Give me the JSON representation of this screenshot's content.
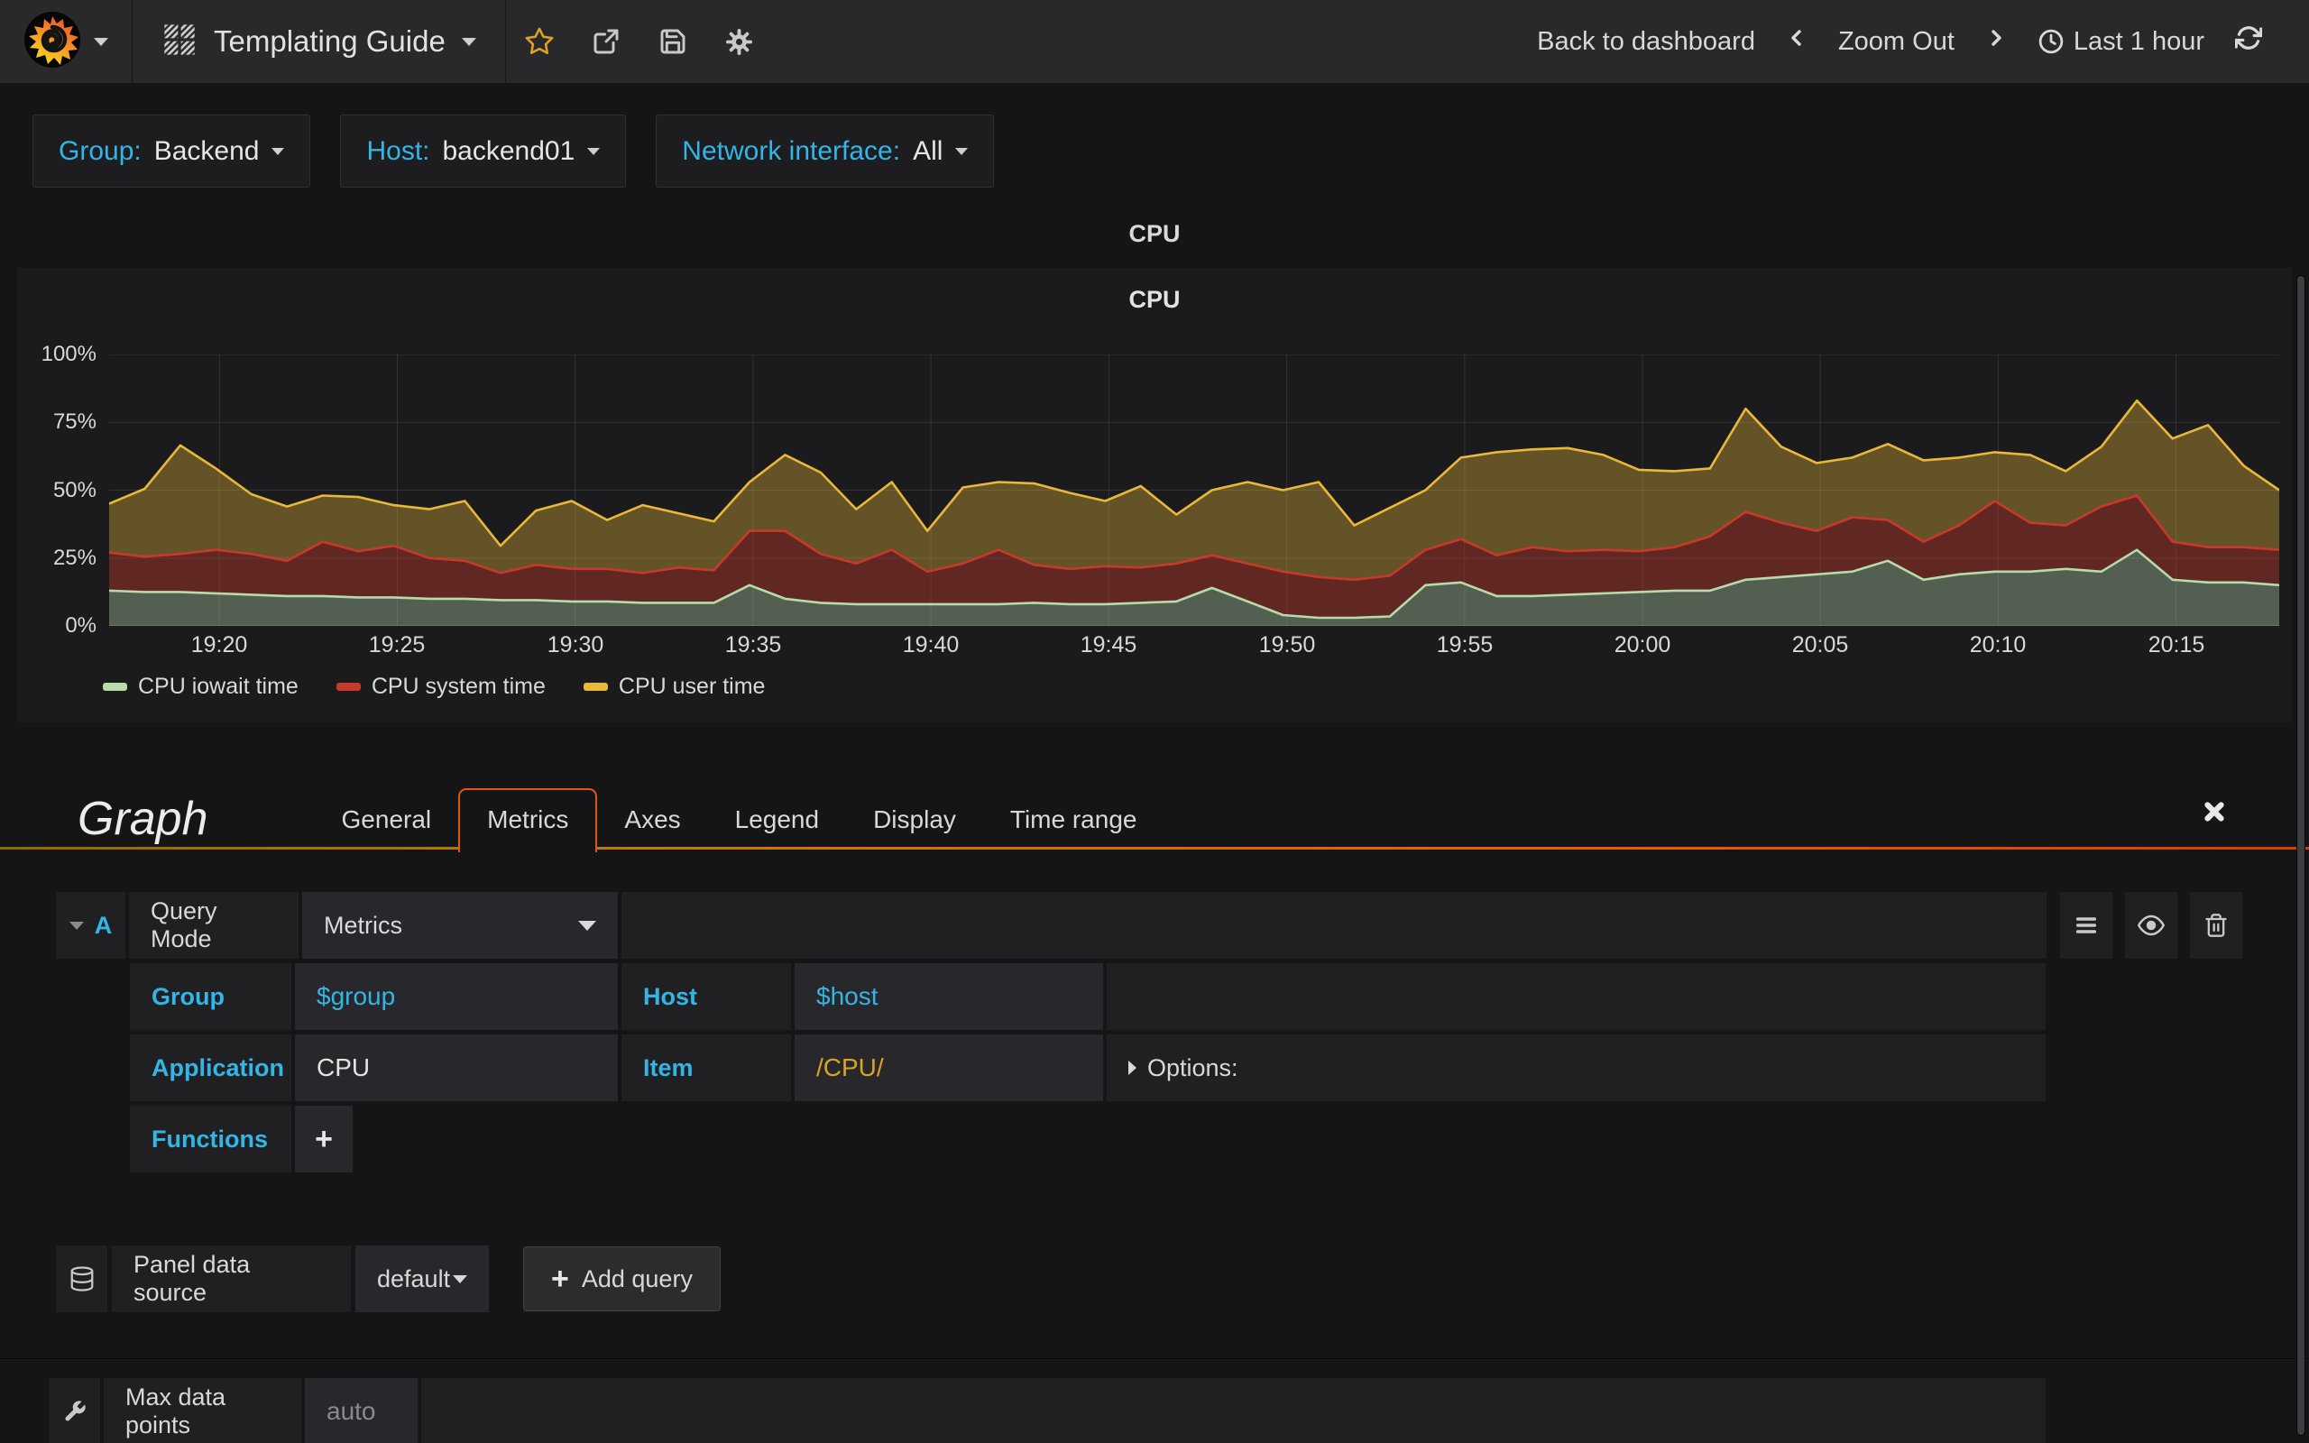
{
  "colors": {
    "accent_blue": "#33B5E5",
    "variable_gold": "#D9A425",
    "tab_active_border": "#DE5A10",
    "panel_bg": "#1b1b1e",
    "navbar_bg": "#29292c"
  },
  "icons": {
    "plus": "+"
  },
  "navbar": {
    "title": "Templating Guide",
    "back_label": "Back to dashboard",
    "zoom_out_label": "Zoom Out",
    "time_label": "Last 1 hour"
  },
  "variables": [
    {
      "label": "Group:",
      "value": "Backend"
    },
    {
      "label": "Host:",
      "value": "backend01"
    },
    {
      "label": "Network interface:",
      "value": "All"
    }
  ],
  "panel": {
    "row_title": "CPU",
    "title": "CPU"
  },
  "chart_data": {
    "type": "area",
    "stacked": true,
    "title": "CPU",
    "xlabel": "",
    "ylabel": "percent",
    "ylim": [
      0,
      100
    ],
    "grid": true,
    "legend_position": "bottom",
    "yticks": [
      {
        "v": 0,
        "label": "0%"
      },
      {
        "v": 25,
        "label": "25%"
      },
      {
        "v": 50,
        "label": "50%"
      },
      {
        "v": 75,
        "label": "75%"
      },
      {
        "v": 100,
        "label": "100%"
      }
    ],
    "y_gridlines": [
      25,
      50,
      75,
      100
    ],
    "x_span_min": 61,
    "xticks": [
      {
        "offset_min": 3.1,
        "label": "19:20"
      },
      {
        "offset_min": 8.1,
        "label": "19:25"
      },
      {
        "offset_min": 13.1,
        "label": "19:30"
      },
      {
        "offset_min": 18.1,
        "label": "19:35"
      },
      {
        "offset_min": 23.1,
        "label": "19:40"
      },
      {
        "offset_min": 28.1,
        "label": "19:45"
      },
      {
        "offset_min": 33.1,
        "label": "19:50"
      },
      {
        "offset_min": 38.1,
        "label": "19:55"
      },
      {
        "offset_min": 43.1,
        "label": "20:00"
      },
      {
        "offset_min": 48.1,
        "label": "20:05"
      },
      {
        "offset_min": 53.1,
        "label": "20:10"
      },
      {
        "offset_min": 58.1,
        "label": "20:15"
      }
    ],
    "series": [
      {
        "name": "CPU iowait time",
        "color": "#B7DBAB",
        "fill_alpha": 0.36,
        "values": [
          13,
          12.5,
          12.5,
          12,
          11.5,
          11,
          11,
          10.5,
          10.5,
          10,
          10,
          9.5,
          9.5,
          9,
          9,
          8.5,
          8.5,
          8.5,
          15,
          10,
          8.5,
          8,
          8,
          8,
          8,
          8,
          8.5,
          8,
          8,
          8.5,
          9,
          14,
          9,
          4,
          3,
          3,
          3.5,
          15,
          16,
          11,
          11,
          11.5,
          12,
          12.5,
          13,
          13,
          17,
          18,
          19,
          20,
          24,
          17,
          19,
          20,
          20,
          21,
          20,
          28,
          17,
          16,
          16,
          15
        ]
      },
      {
        "name": "CPU system time",
        "color": "#C9392B",
        "fill_alpha": 0.4,
        "values": [
          14,
          13,
          14,
          16,
          15,
          13,
          20,
          17,
          19,
          15,
          14,
          10,
          13,
          12,
          12,
          11,
          13,
          12,
          20,
          25,
          18,
          15,
          20,
          12,
          15,
          20,
          14,
          13,
          14,
          13,
          14,
          12,
          14,
          16,
          15,
          14,
          15,
          13,
          16,
          15,
          18,
          16,
          16,
          15,
          16,
          20,
          25,
          20,
          16,
          20,
          15,
          14,
          18,
          26,
          18,
          16,
          24,
          20,
          14,
          13,
          13,
          13
        ]
      },
      {
        "name": "CPU user time",
        "color": "#EAB839",
        "fill_alpha": 0.36,
        "values": [
          18,
          25,
          40,
          30,
          22,
          20,
          17,
          20,
          15,
          18,
          22,
          10,
          20,
          25,
          18,
          25,
          20,
          18,
          18,
          28,
          30,
          20,
          25,
          15,
          28,
          25,
          30,
          28,
          24,
          30,
          18,
          24,
          30,
          30,
          35,
          20,
          25,
          22,
          30,
          38,
          36,
          38,
          35,
          30,
          28,
          25,
          38,
          28,
          25,
          22,
          28,
          30,
          25,
          18,
          25,
          20,
          22,
          35,
          38,
          45,
          30,
          22
        ]
      }
    ]
  },
  "editor": {
    "title": "Graph",
    "tabs": [
      "General",
      "Metrics",
      "Axes",
      "Legend",
      "Display",
      "Time range"
    ],
    "active_tab": "Metrics",
    "query": {
      "letter": "A",
      "mode_label": "Query Mode",
      "mode_value": "Metrics",
      "group_label": "Group",
      "group_value": "$group",
      "host_label": "Host",
      "host_value": "$host",
      "application_label": "Application",
      "application_value": "CPU",
      "item_label": "Item",
      "item_value": "/CPU/",
      "options_label": "Options:",
      "functions_label": "Functions"
    },
    "datasource": {
      "label": "Panel data source",
      "value": "default",
      "add_query_label": "Add query"
    },
    "footer": {
      "label": "Max data points",
      "placeholder": "auto"
    }
  }
}
